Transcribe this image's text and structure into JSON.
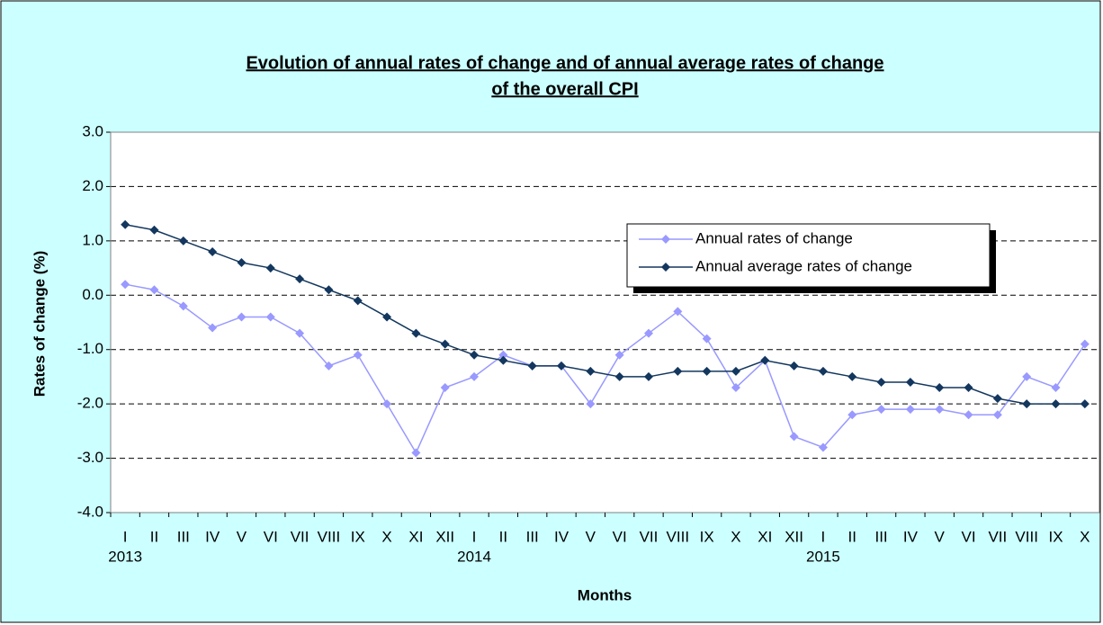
{
  "chart_data": {
    "type": "line",
    "title_lines": [
      "Evolution of annual rates of change and of annual average rates of change",
      "of  the overall CPI"
    ],
    "x_label": "Months",
    "y_label": "Rates of change (%)",
    "categories": [
      "I",
      "II",
      "III",
      "IV",
      "V",
      "VI",
      "VII",
      "VIII",
      "IX",
      "X",
      "XI",
      "XII",
      "I",
      "II",
      "III",
      "IV",
      "V",
      "VI",
      "VII",
      "VIII",
      "IX",
      "X",
      "XI",
      "XII",
      "I",
      "II",
      "III",
      "IV",
      "V",
      "VI",
      "VII",
      "VIII",
      "IX",
      "X"
    ],
    "category_years": [
      "2013",
      null,
      null,
      null,
      null,
      null,
      null,
      null,
      null,
      null,
      null,
      null,
      "2014",
      null,
      null,
      null,
      null,
      null,
      null,
      null,
      null,
      null,
      null,
      null,
      "2015",
      null,
      null,
      null,
      null,
      null,
      null,
      null,
      null,
      null
    ],
    "series": [
      {
        "name": "Annual rates of change",
        "color": "#9999ff",
        "values": [
          0.2,
          0.1,
          -0.2,
          -0.6,
          -0.4,
          -0.4,
          -0.7,
          -1.3,
          -1.1,
          -2.0,
          -2.9,
          -1.7,
          -1.5,
          -1.1,
          -1.3,
          -1.3,
          -2.0,
          -1.1,
          -0.7,
          -0.3,
          -0.8,
          -1.7,
          -1.2,
          -2.6,
          -2.8,
          -2.2,
          -2.1,
          -2.1,
          -2.1,
          -2.2,
          -2.2,
          -1.5,
          -1.7,
          -0.9
        ]
      },
      {
        "name": "Annual average rates of change",
        "color": "#13375e",
        "values": [
          1.3,
          1.2,
          1.0,
          0.8,
          0.6,
          0.5,
          0.3,
          0.1,
          -0.1,
          -0.4,
          -0.7,
          -0.9,
          -1.1,
          -1.2,
          -1.3,
          -1.3,
          -1.4,
          -1.5,
          -1.5,
          -1.4,
          -1.4,
          -1.4,
          -1.2,
          -1.3,
          -1.4,
          -1.5,
          -1.6,
          -1.6,
          -1.7,
          -1.7,
          -1.9,
          -2.0,
          -2.0,
          -2.0
        ]
      }
    ],
    "ylim": [
      -4,
      3
    ],
    "yticks": [
      {
        "value": -4,
        "label": "-4.0"
      },
      {
        "value": -3,
        "label": "-3.0"
      },
      {
        "value": -2,
        "label": "-2.0"
      },
      {
        "value": -1,
        "label": "-1.0"
      },
      {
        "value": 0,
        "label": "0.0"
      },
      {
        "value": 1,
        "label": "1.0"
      },
      {
        "value": 2,
        "label": "2.0"
      },
      {
        "value": 3,
        "label": "3.0"
      }
    ],
    "grid": true
  }
}
